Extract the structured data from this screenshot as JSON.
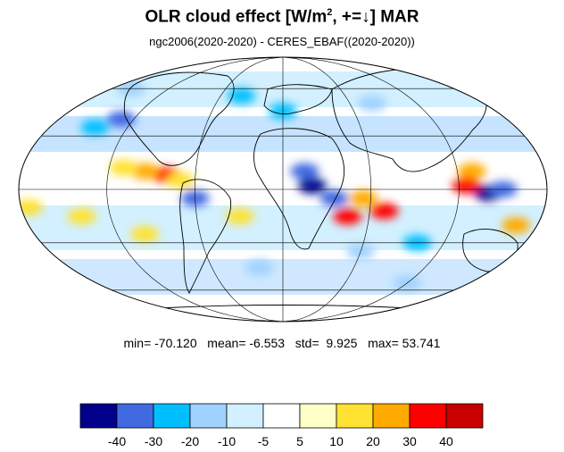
{
  "title": {
    "main": "OLR cloud effect [W/m",
    "sup": "2",
    "tail": ", +=↓]  MAR"
  },
  "subtitle": "ngc2006(2020-2020) - CERES_EBAF((2020-2020))",
  "stats": {
    "min_label": "min=",
    "min": "-70.120",
    "mean_label": "mean=",
    "mean": "-6.553",
    "std_label": "std=",
    "std": "9.925",
    "max_label": "max=",
    "max": "53.741"
  },
  "colorbar": {
    "colors": [
      "#00008b",
      "#4169e1",
      "#00bfff",
      "#a0d2ff",
      "#d2f0ff",
      "#ffffff",
      "#ffffc8",
      "#ffe232",
      "#ffaa00",
      "#ff0000",
      "#c80000"
    ],
    "ticks": [
      "-40",
      "-30",
      "-20",
      "-10",
      "-5",
      "5",
      "10",
      "20",
      "30",
      "40"
    ]
  },
  "map": {
    "projection": "Mollweide",
    "grid_parallels_deg": [
      -60,
      -30,
      0,
      30,
      60
    ],
    "grid_meridians_deg": [
      -120,
      -60,
      0,
      60,
      120,
      180
    ],
    "patches": [
      {
        "lon": -80,
        "lat": 8,
        "color": "#ff0000"
      },
      {
        "lon": -95,
        "lat": 10,
        "color": "#ffaa00"
      },
      {
        "lon": -70,
        "lat": 5,
        "color": "#ffe232"
      },
      {
        "lon": -110,
        "lat": 12,
        "color": "#ffe232"
      },
      {
        "lon": 20,
        "lat": 2,
        "color": "#00008b"
      },
      {
        "lon": 15,
        "lat": 10,
        "color": "#4169e1"
      },
      {
        "lon": 35,
        "lat": -5,
        "color": "#4169e1"
      },
      {
        "lon": -60,
        "lat": -5,
        "color": "#4169e1"
      },
      {
        "lon": -130,
        "lat": 40,
        "color": "#4169e1"
      },
      {
        "lon": -145,
        "lat": 35,
        "color": "#00bfff"
      },
      {
        "lon": 140,
        "lat": -2,
        "color": "#00008b"
      },
      {
        "lon": 150,
        "lat": 0,
        "color": "#4169e1"
      },
      {
        "lon": 130,
        "lat": 10,
        "color": "#ffaa00"
      },
      {
        "lon": 125,
        "lat": 2,
        "color": "#ff0000"
      },
      {
        "lon": 70,
        "lat": -12,
        "color": "#ff0000"
      },
      {
        "lon": 55,
        "lat": -5,
        "color": "#ffaa00"
      },
      {
        "lon": 45,
        "lat": -15,
        "color": "#ff0000"
      },
      {
        "lon": 60,
        "lat": -35,
        "color": "#a0d2ff"
      },
      {
        "lon": -140,
        "lat": -15,
        "color": "#ffe232"
      },
      {
        "lon": -175,
        "lat": -10,
        "color": "#ffe232"
      },
      {
        "lon": -100,
        "lat": -25,
        "color": "#ffe232"
      },
      {
        "lon": -30,
        "lat": -15,
        "color": "#ffe232"
      },
      {
        "lon": 100,
        "lat": -30,
        "color": "#00bfff"
      },
      {
        "lon": 0,
        "lat": 45,
        "color": "#00bfff"
      },
      {
        "lon": 80,
        "lat": 50,
        "color": "#a0d2ff"
      },
      {
        "lon": -40,
        "lat": 55,
        "color": "#00bfff"
      },
      {
        "lon": 165,
        "lat": -20,
        "color": "#ffaa00"
      },
      {
        "lon": -20,
        "lat": -45,
        "color": "#a0d2ff"
      },
      {
        "lon": 120,
        "lat": -55,
        "color": "#a0d2ff"
      },
      {
        "lon": -160,
        "lat": 60,
        "color": "#a0d2ff"
      }
    ]
  }
}
